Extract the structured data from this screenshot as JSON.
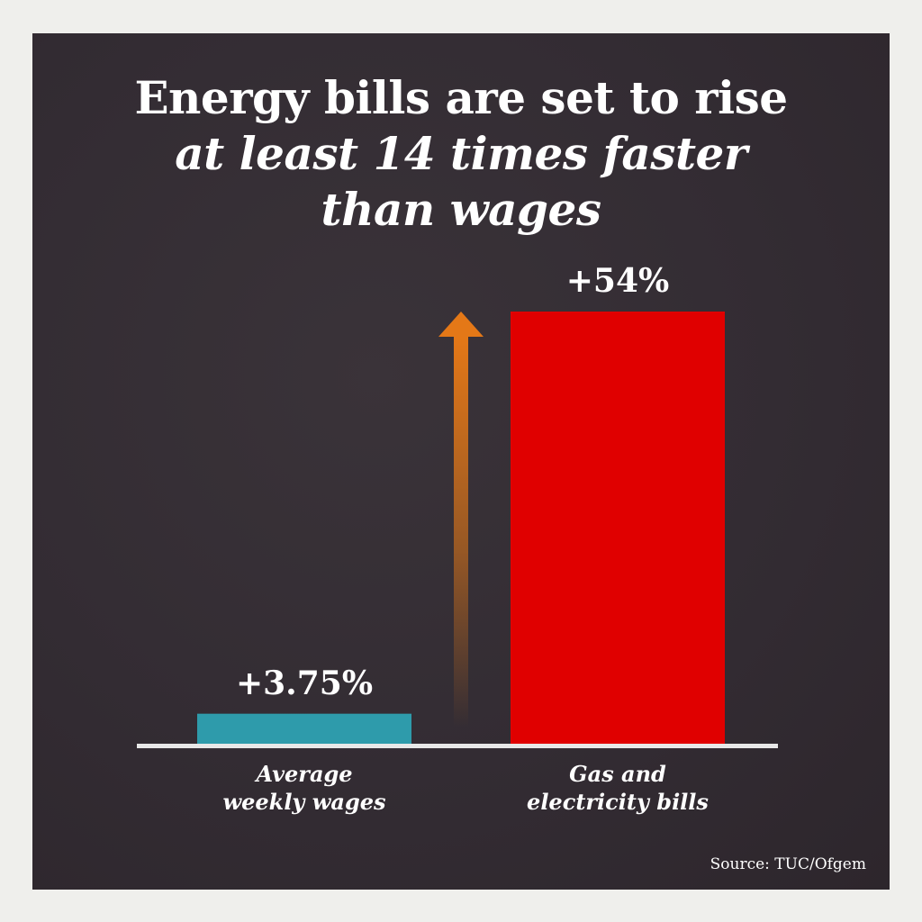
{
  "title": {
    "line1": "Energy bills are set to rise",
    "line2": "at least 14 times faster",
    "line3": "than wages"
  },
  "chart_data": {
    "type": "bar",
    "categories": [
      [
        "Average",
        "weekly wages"
      ],
      [
        "Gas and",
        "electricity bills"
      ]
    ],
    "values": [
      3.75,
      54
    ],
    "value_labels": [
      "+3.75%",
      "+54%"
    ],
    "colors": [
      "#2e9bab",
      "#e00000"
    ],
    "arrow_color": "#e47817",
    "ylim": [
      0,
      54
    ],
    "grid": false,
    "legend": "none"
  },
  "source": "Source: TUC/Ofgem",
  "colors": {
    "panel": "#332c33",
    "background": "#efefec",
    "text": "#ffffff",
    "baseline": "#e8e8e8"
  }
}
